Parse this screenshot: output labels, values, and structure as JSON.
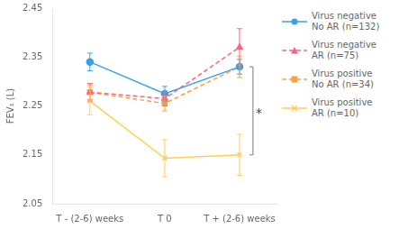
{
  "chart_data": {
    "type": "line",
    "categories": [
      "T - (2-6) weeks",
      "T 0",
      "T + (2-6) weeks"
    ],
    "ylabel": "FEV₁ (L)",
    "ylim": [
      2.05,
      2.45
    ],
    "yticks": [
      2.05,
      2.15,
      2.25,
      2.35,
      2.45
    ],
    "grid": false,
    "legend": "right",
    "series": [
      {
        "name": "Virus negative\nNo AR (n=132)",
        "values": [
          2.34,
          2.275,
          2.33
        ],
        "yerr": [
          0.018,
          0.015,
          0.015
        ],
        "marker": "circle",
        "line_style": "solid"
      },
      {
        "name": "Virus negative\nAR (n=75)",
        "values": [
          2.278,
          2.265,
          2.37
        ],
        "yerr": [
          0.018,
          0.015,
          0.038
        ],
        "marker": "triangle",
        "line_style": "dashed"
      },
      {
        "name": "Virus positive\nNo AR (n=34)",
        "values": [
          2.278,
          2.255,
          2.33
        ],
        "yerr": [
          0.015,
          0.015,
          0.022
        ],
        "marker": "square",
        "line_style": "dashed"
      },
      {
        "name": "Virus positive\nAR (n=10)",
        "values": [
          2.26,
          2.143,
          2.15
        ],
        "yerr": [
          0.028,
          0.038,
          0.042
        ],
        "marker": "x",
        "line_style": "solid"
      }
    ],
    "annotations": [
      {
        "text": "*",
        "y_from": 2.33,
        "y_to": 2.15
      }
    ]
  }
}
